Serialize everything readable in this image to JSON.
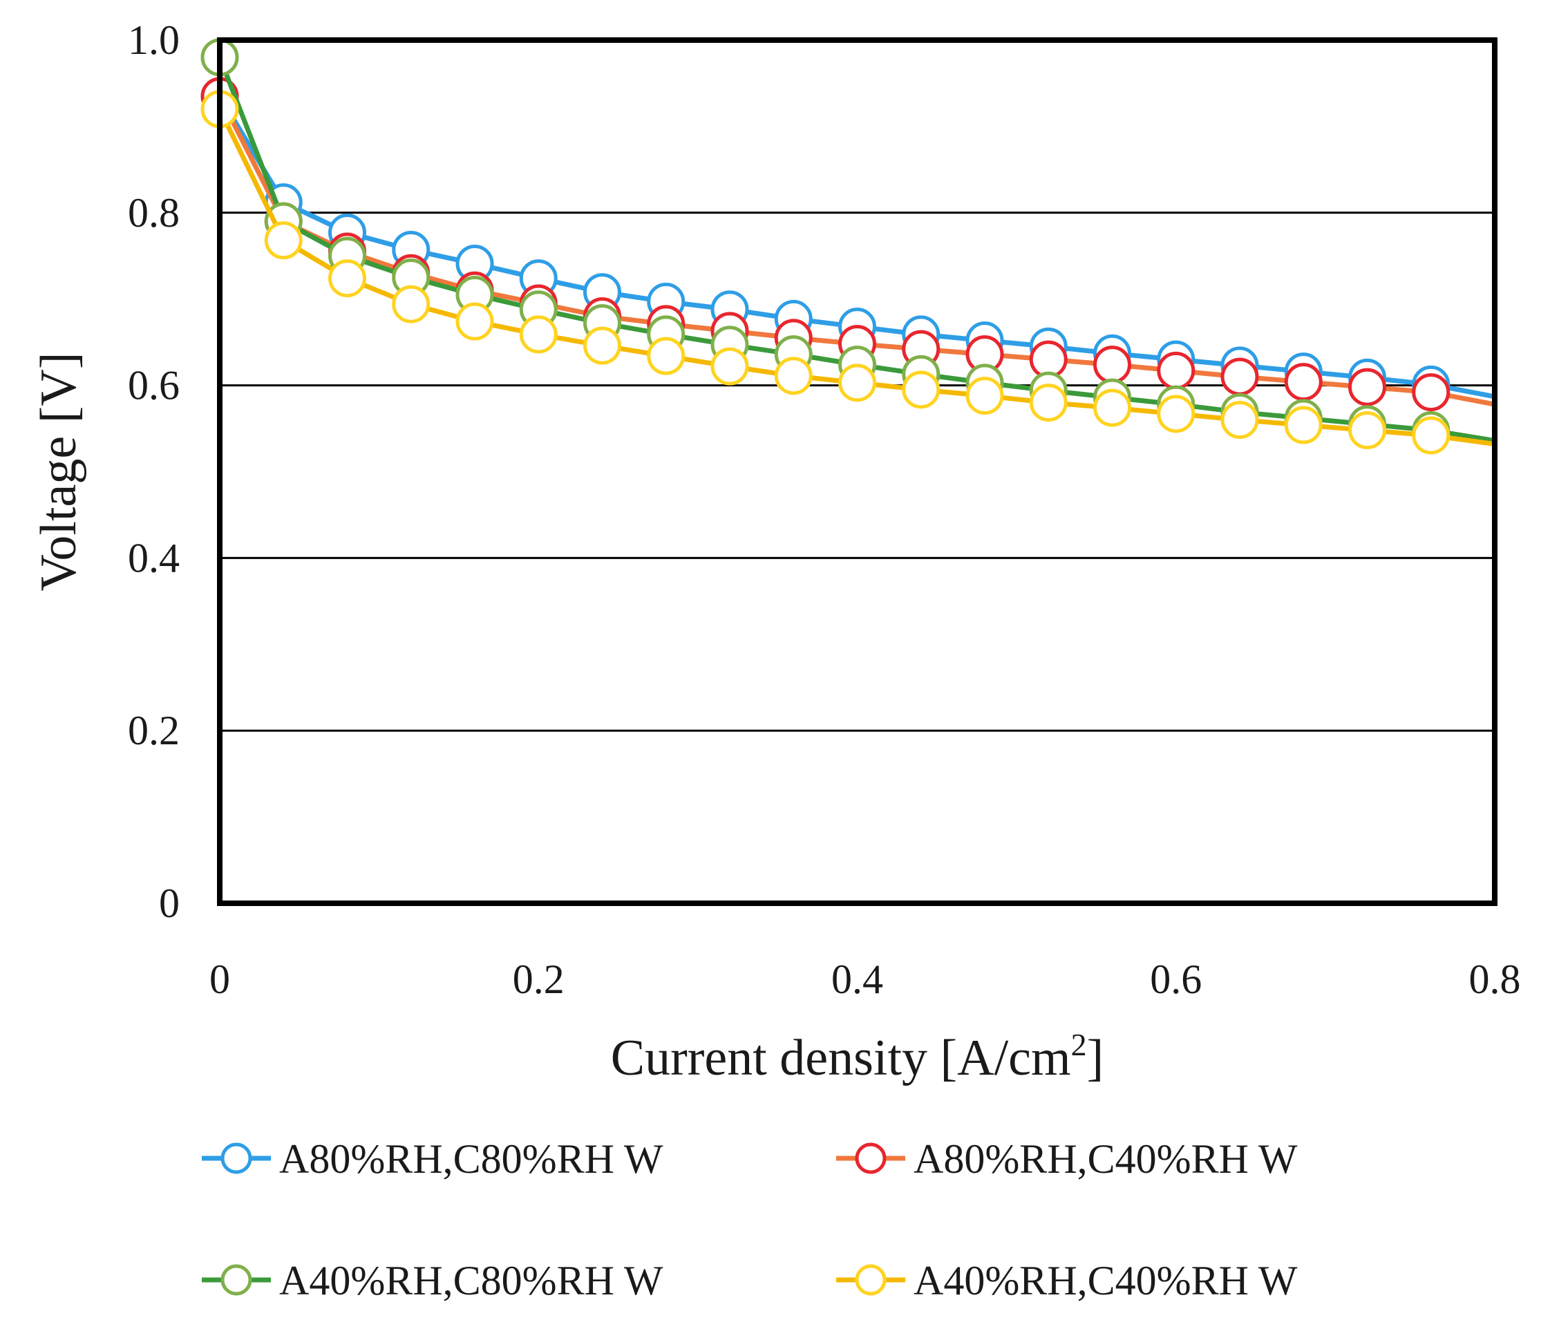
{
  "chart_data": {
    "type": "line",
    "title": "",
    "xlabel": "Current density [A/cm",
    "xlabel_sup": "2",
    "xlabel_end": "]",
    "ylabel": "Voltage [V]",
    "xlim": [
      0,
      0.8
    ],
    "ylim": [
      0,
      1.0
    ],
    "xticks": [
      0,
      0.2,
      0.4,
      0.6,
      0.8
    ],
    "xtick_labels": [
      "0",
      "0.2",
      "0.4",
      "0.6",
      "0.8"
    ],
    "yticks": [
      0,
      0.2,
      0.4,
      0.6,
      0.8,
      1.0
    ],
    "ytick_labels": [
      "0",
      "0.2",
      "0.4",
      "0.6",
      "0.8",
      "1.0"
    ],
    "grid": "horizontal",
    "legend_position": "bottom",
    "x": [
      0,
      0.04,
      0.08,
      0.12,
      0.16,
      0.2,
      0.24,
      0.28,
      0.32,
      0.36,
      0.4,
      0.44,
      0.48,
      0.52,
      0.56,
      0.6,
      0.64,
      0.68,
      0.72,
      0.76
    ],
    "line_end_x": 0.8,
    "series": [
      {
        "name": "A80%RH,C80%RH W",
        "line_color": "#2e9ee6",
        "marker_color": "#2e9ee6",
        "values": [
          0.935,
          0.812,
          0.777,
          0.757,
          0.741,
          0.724,
          0.708,
          0.697,
          0.688,
          0.677,
          0.668,
          0.659,
          0.652,
          0.645,
          0.637,
          0.63,
          0.623,
          0.616,
          0.609,
          0.601
        ],
        "end_value": 0.587
      },
      {
        "name": "A80%RH,C40%RH W",
        "line_color": "#f0783c",
        "marker_color": "#e8262e",
        "values": [
          0.935,
          0.79,
          0.755,
          0.73,
          0.71,
          0.695,
          0.68,
          0.671,
          0.663,
          0.655,
          0.648,
          0.642,
          0.636,
          0.63,
          0.624,
          0.617,
          0.61,
          0.604,
          0.598,
          0.592
        ],
        "end_value": 0.578
      },
      {
        "name": "A40%RH,C80%RH W",
        "line_color": "#3a9a3a",
        "marker_color": "#7fb04a",
        "values": [
          0.98,
          0.79,
          0.75,
          0.725,
          0.705,
          0.688,
          0.672,
          0.659,
          0.647,
          0.636,
          0.624,
          0.613,
          0.603,
          0.594,
          0.586,
          0.578,
          0.569,
          0.562,
          0.555,
          0.548
        ],
        "end_value": 0.536
      },
      {
        "name": "A40%RH,C40%RH W",
        "line_color": "#f5b800",
        "marker_color": "#ffd320",
        "values": [
          0.92,
          0.768,
          0.724,
          0.694,
          0.674,
          0.659,
          0.646,
          0.634,
          0.622,
          0.611,
          0.603,
          0.595,
          0.588,
          0.58,
          0.574,
          0.567,
          0.56,
          0.554,
          0.548,
          0.542
        ],
        "end_value": 0.532
      }
    ]
  }
}
